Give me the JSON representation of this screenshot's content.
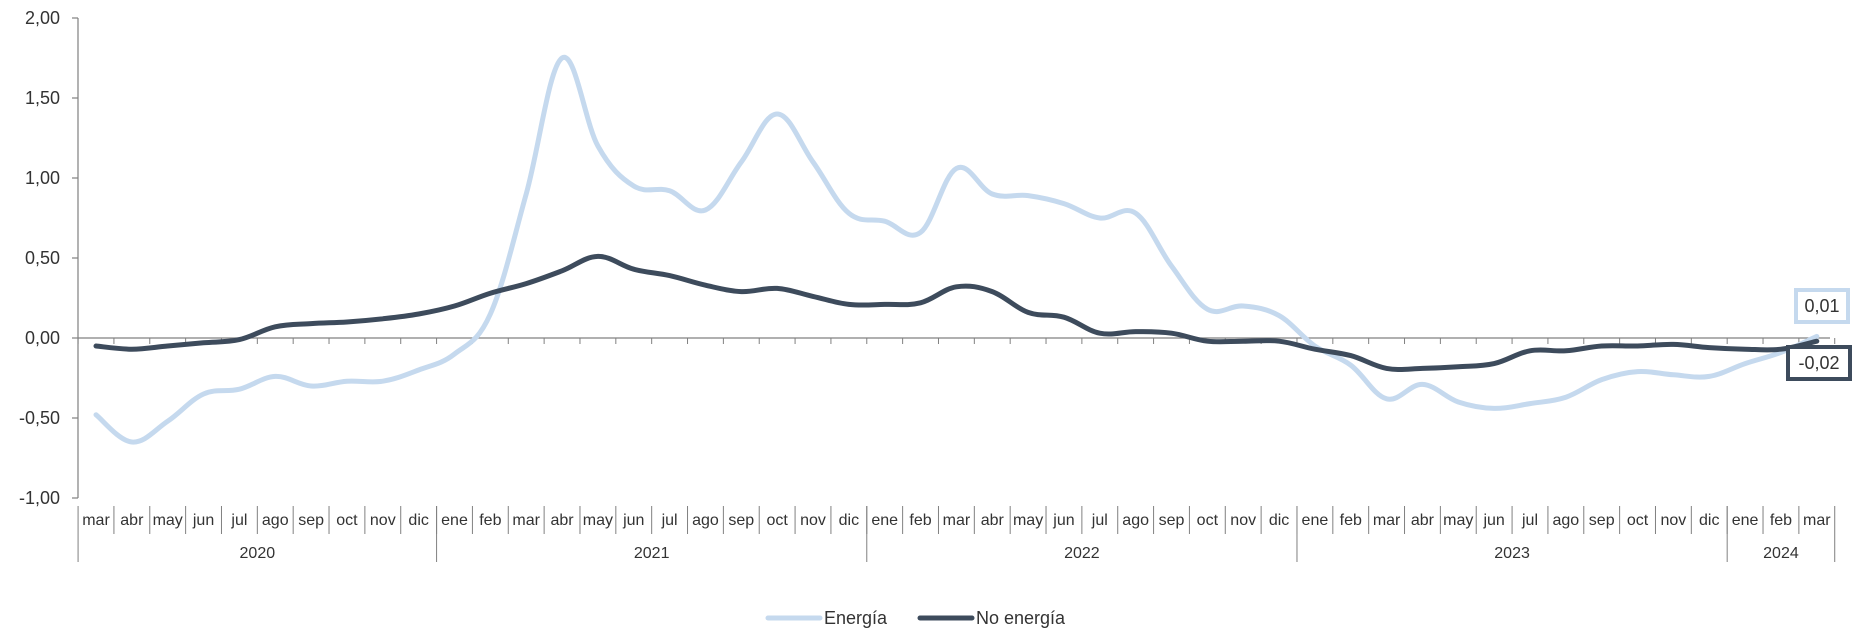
{
  "chart_data": {
    "type": "line",
    "title": "",
    "xlabel": "",
    "ylabel": "",
    "ylim": [
      -1.0,
      2.0
    ],
    "yticks": [
      "2,00",
      "1,50",
      "1,00",
      "0,50",
      "0,00",
      "-0,50",
      "-1,00"
    ],
    "grid": false,
    "legend_position": "bottom-center",
    "years": [
      {
        "label": "2020",
        "months": 10
      },
      {
        "label": "2021",
        "months": 12
      },
      {
        "label": "2022",
        "months": 12
      },
      {
        "label": "2023",
        "months": 12
      },
      {
        "label": "2024",
        "months": 3
      }
    ],
    "categories": [
      "mar",
      "abr",
      "may",
      "jun",
      "jul",
      "ago",
      "sep",
      "oct",
      "nov",
      "dic",
      "ene",
      "feb",
      "mar",
      "abr",
      "may",
      "jun",
      "jul",
      "ago",
      "sep",
      "oct",
      "nov",
      "dic",
      "ene",
      "feb",
      "mar",
      "abr",
      "may",
      "jun",
      "jul",
      "ago",
      "sep",
      "oct",
      "nov",
      "dic",
      "ene",
      "feb",
      "mar",
      "abr",
      "may",
      "jun",
      "jul",
      "ago",
      "sep",
      "oct",
      "nov",
      "dic",
      "ene",
      "feb",
      "mar"
    ],
    "series": [
      {
        "name": "Energía",
        "color": "#c5d9ee",
        "end_label": "0,01",
        "values": [
          -0.48,
          -0.65,
          -0.52,
          -0.35,
          -0.32,
          -0.24,
          -0.3,
          -0.27,
          -0.27,
          -0.2,
          -0.1,
          0.15,
          0.9,
          1.75,
          1.2,
          0.95,
          0.92,
          0.8,
          1.1,
          1.4,
          1.1,
          0.78,
          0.73,
          0.66,
          1.06,
          0.9,
          0.89,
          0.84,
          0.75,
          0.78,
          0.45,
          0.18,
          0.2,
          0.14,
          -0.05,
          -0.17,
          -0.38,
          -0.29,
          -0.4,
          -0.44,
          -0.41,
          -0.37,
          -0.26,
          -0.21,
          -0.23,
          -0.24,
          -0.16,
          -0.09,
          0.01
        ]
      },
      {
        "name": "No energía",
        "color": "#3d4b5c",
        "end_label": "-0,02",
        "values": [
          -0.05,
          -0.07,
          -0.05,
          -0.03,
          -0.01,
          0.07,
          0.09,
          0.1,
          0.12,
          0.15,
          0.2,
          0.28,
          0.34,
          0.42,
          0.51,
          0.43,
          0.39,
          0.33,
          0.29,
          0.31,
          0.26,
          0.21,
          0.21,
          0.22,
          0.32,
          0.29,
          0.16,
          0.13,
          0.03,
          0.04,
          0.03,
          -0.02,
          -0.02,
          -0.02,
          -0.07,
          -0.11,
          -0.19,
          -0.19,
          -0.18,
          -0.16,
          -0.08,
          -0.08,
          -0.05,
          -0.05,
          -0.04,
          -0.06,
          -0.07,
          -0.07,
          -0.02
        ]
      }
    ]
  }
}
